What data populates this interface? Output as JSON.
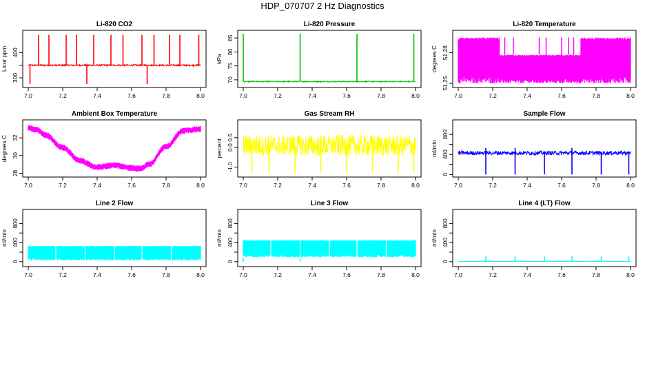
{
  "page": {
    "title": "HDP_070707  2 Hz Diagnostics"
  },
  "chart_data": [
    {
      "type": "line",
      "title": "Li-820 CO2",
      "xlabel": "",
      "ylabel": "Licor ppm",
      "color": "#ff0000",
      "xlim": [
        7.0,
        8.0
      ],
      "ylim": [
        270,
        480
      ],
      "xticks": [
        "7.0",
        "7.2",
        "7.4",
        "7.6",
        "7.8",
        "8.0"
      ],
      "yticks": [
        300,
        350,
        400
      ],
      "yticklabels": [
        "300",
        "",
        "400"
      ],
      "pattern": {
        "kind": "noise",
        "base": 350,
        "amp": 3,
        "spikes_up": [
          7.06,
          7.12,
          7.22,
          7.28,
          7.38,
          7.48,
          7.55,
          7.66,
          7.73,
          7.82,
          7.88,
          7.99
        ],
        "spikes_up_to": 470,
        "spikes_down": [
          7.01,
          7.34,
          7.69
        ],
        "spikes_down_to": 275
      }
    },
    {
      "type": "line",
      "title": "Li-820 Pressure",
      "xlabel": "",
      "ylabel": "kPa",
      "color": "#00c000",
      "xlim": [
        7.0,
        8.0
      ],
      "ylim": [
        68,
        87
      ],
      "xticks": [
        "7.0",
        "7.2",
        "7.4",
        "7.6",
        "7.8",
        "8.0"
      ],
      "yticks": [
        70,
        75,
        80,
        85
      ],
      "yticklabels": [
        "70",
        "75",
        "80",
        "85"
      ],
      "pattern": {
        "kind": "noise",
        "base": 69.4,
        "amp": 0.2,
        "spikes_up": [
          7.0,
          7.33,
          7.66,
          7.99
        ],
        "spikes_up_to": 86.5,
        "spikes_down": [],
        "spikes_down_to": 69
      }
    },
    {
      "type": "line",
      "title": "Li-820 Temperature",
      "xlabel": "",
      "ylabel": "degrees C",
      "color": "#ff00ff",
      "xlim": [
        7.0,
        8.0
      ],
      "ylim": [
        51.248,
        51.3
      ],
      "xticks": [
        "7.0",
        "7.2",
        "7.4",
        "7.6",
        "7.8",
        "8.0"
      ],
      "yticks": [
        51.25,
        51.28
      ],
      "yticklabels": [
        "51.25",
        "51.28"
      ],
      "pattern": {
        "kind": "band",
        "low": 51.25,
        "high": 51.295,
        "gap_from": 7.24,
        "gap_to": 7.71,
        "gap_high": 51.278,
        "spikes_up": [
          7.27,
          7.32,
          7.47,
          7.51,
          7.6,
          7.64,
          7.67
        ],
        "spikes_up_to": 51.295
      }
    },
    {
      "type": "line",
      "title": "Ambient Box Temperature",
      "xlabel": "",
      "ylabel": "degrees C",
      "color": "#ff00ff",
      "xlim": [
        7.0,
        8.0
      ],
      "ylim": [
        27.8,
        33.8
      ],
      "xticks": [
        "7.0",
        "7.2",
        "7.4",
        "7.6",
        "7.8",
        "8.0"
      ],
      "yticks": [
        28,
        30,
        32
      ],
      "yticklabels": [
        "28",
        "30",
        "32"
      ],
      "pattern": {
        "kind": "curve",
        "amp": 0.35,
        "points": [
          [
            7.0,
            33.1
          ],
          [
            7.05,
            32.9
          ],
          [
            7.1,
            32.3
          ],
          [
            7.2,
            30.9
          ],
          [
            7.3,
            29.4
          ],
          [
            7.4,
            28.7
          ],
          [
            7.5,
            28.9
          ],
          [
            7.6,
            28.6
          ],
          [
            7.65,
            28.5
          ],
          [
            7.7,
            29.0
          ],
          [
            7.8,
            31.0
          ],
          [
            7.9,
            32.8
          ],
          [
            8.0,
            33.0
          ]
        ]
      }
    },
    {
      "type": "line",
      "title": "Gas Stream RH",
      "xlabel": "",
      "ylabel": "percent",
      "color": "#ffff00",
      "xlim": [
        7.0,
        8.0
      ],
      "ylim": [
        -1.4,
        1.3
      ],
      "xticks": [
        "7.0",
        "7.2",
        "7.4",
        "7.6",
        "7.8",
        "8.0"
      ],
      "yticks": [
        -1.0,
        0.0,
        0.5
      ],
      "yticklabels": [
        "-1.0",
        "0.0",
        "0.5"
      ],
      "pattern": {
        "kind": "noise",
        "base": 0.1,
        "amp": 0.55,
        "spikes_up": [],
        "spikes_up_to": 1.1,
        "spikes_down": [
          7.05,
          7.15,
          7.3,
          7.45,
          7.6,
          7.75,
          7.9,
          7.99
        ],
        "spikes_down_to": -1.3
      }
    },
    {
      "type": "line",
      "title": "Sample Flow",
      "xlabel": "",
      "ylabel": "ml/min",
      "color": "#0000ff",
      "xlim": [
        7.0,
        8.0
      ],
      "ylim": [
        -10,
        1050
      ],
      "xticks": [
        "7.0",
        "7.2",
        "7.4",
        "7.6",
        "7.8",
        "8.0"
      ],
      "yticks": [
        0,
        200,
        400,
        600,
        800
      ],
      "yticklabels": [
        "0",
        "",
        "400",
        "",
        "800"
      ],
      "pattern": {
        "kind": "noise",
        "base": 430,
        "amp": 40,
        "spikes_up": [
          7.16,
          7.33,
          7.66
        ],
        "spikes_up_to": 530,
        "spikes_down": [
          7.16,
          7.33,
          7.5,
          7.66,
          7.83,
          7.99
        ],
        "spikes_down_to": 0
      }
    },
    {
      "type": "line",
      "title": "Line 2 Flow",
      "xlabel": "",
      "ylabel": "ml/min",
      "color": "#00ffff",
      "xlim": [
        7.0,
        8.0
      ],
      "ylim": [
        -60,
        1050
      ],
      "xticks": [
        "7.0",
        "7.2",
        "7.4",
        "7.6",
        "7.8",
        "8.0"
      ],
      "yticks": [
        0,
        200,
        400,
        600,
        800
      ],
      "yticklabels": [
        "0",
        "",
        "400",
        "",
        "800"
      ],
      "pattern": {
        "kind": "band",
        "low": 25,
        "high": 330,
        "gap_from": 0,
        "gap_to": 0,
        "gap_high": 330,
        "breaks": [
          7.16,
          7.33,
          7.5,
          7.66,
          7.83
        ]
      }
    },
    {
      "type": "line",
      "title": "Line 3 Flow",
      "xlabel": "",
      "ylabel": "ml/min",
      "color": "#00ffff",
      "xlim": [
        7.0,
        8.0
      ],
      "ylim": [
        -60,
        1050
      ],
      "xticks": [
        "7.0",
        "7.2",
        "7.4",
        "7.6",
        "7.8",
        "8.0"
      ],
      "yticks": [
        0,
        200,
        400,
        600,
        800
      ],
      "yticklabels": [
        "0",
        "",
        "400",
        "",
        "800"
      ],
      "pattern": {
        "kind": "band",
        "low": 90,
        "high": 450,
        "gap_from": 0,
        "gap_to": 0,
        "gap_high": 450,
        "breaks": [
          7.16,
          7.33,
          7.5,
          7.66,
          7.83
        ],
        "spikes_down": [
          7.0,
          7.33
        ],
        "spikes_down_to": 0
      }
    },
    {
      "type": "line",
      "title": "Line 4 (LT) Flow",
      "xlabel": "",
      "ylabel": "ml/min",
      "color": "#00ffff",
      "xlim": [
        7.0,
        8.0
      ],
      "ylim": [
        -60,
        1050
      ],
      "xticks": [
        "7.0",
        "7.2",
        "7.4",
        "7.6",
        "7.8",
        "8.0"
      ],
      "yticks": [
        0,
        200,
        400,
        600,
        800
      ],
      "yticklabels": [
        "0",
        "",
        "400",
        "",
        "800"
      ],
      "pattern": {
        "kind": "noise",
        "base": 5,
        "amp": 2,
        "spikes_up": [
          7.16,
          7.33,
          7.5,
          7.66,
          7.83,
          7.99
        ],
        "spikes_up_to": 110,
        "spikes_down": [],
        "spikes_down_to": 0
      }
    }
  ]
}
